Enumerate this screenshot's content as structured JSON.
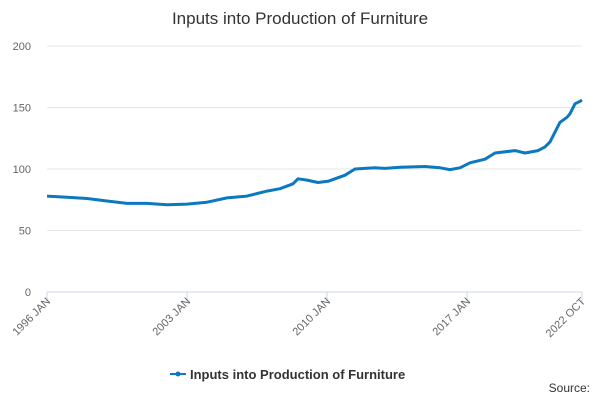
{
  "chart_data": {
    "type": "line",
    "title": "Inputs into Production of Furniture",
    "x": [
      1996.0,
      1997.0,
      1998.0,
      1999.0,
      2000.0,
      2001.0,
      2002.0,
      2003.0,
      2004.0,
      2005.0,
      2006.0,
      2007.0,
      2007.65,
      2008.3,
      2008.55,
      2009.0,
      2009.55,
      2010.05,
      2010.9,
      2011.4,
      2012.4,
      2012.9,
      2013.65,
      2014.9,
      2015.65,
      2016.15,
      2016.65,
      2017.15,
      2017.9,
      2018.4,
      2019.4,
      2019.9,
      2020.55,
      2020.9,
      2021.15,
      2021.4,
      2021.65,
      2022.0,
      2022.15,
      2022.4,
      2022.65,
      2022.75
    ],
    "series": [
      {
        "name": "Inputs into Production of Furniture",
        "color": "#0b79bf",
        "values": [
          78,
          77,
          76,
          74,
          72,
          72,
          71,
          71.5,
          73,
          76.5,
          78,
          82,
          84,
          88,
          92,
          91,
          89,
          90,
          95,
          100,
          101,
          100.5,
          101.5,
          102,
          101,
          99.5,
          101,
          105,
          108,
          113,
          115,
          113,
          115,
          118,
          122,
          130,
          138,
          142,
          145,
          153,
          155,
          156
        ]
      }
    ],
    "xlim": [
      1996.0,
      2022.75
    ],
    "xticks": [
      {
        "value": 1996.0,
        "label": "1996 JAN"
      },
      {
        "value": 2003.0,
        "label": "2003 JAN"
      },
      {
        "value": 2010.0,
        "label": "2010 JAN"
      },
      {
        "value": 2017.0,
        "label": "2017 JAN"
      },
      {
        "value": 2022.75,
        "label": "2022 OCT"
      }
    ],
    "ylim": [
      0,
      200
    ],
    "yticks": [
      0,
      50,
      100,
      150,
      200
    ],
    "grid": true,
    "source": "Source:"
  }
}
